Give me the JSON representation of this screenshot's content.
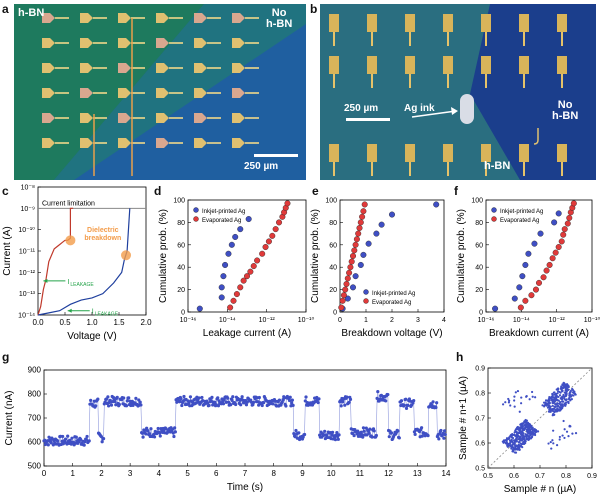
{
  "panels": {
    "a": {
      "letter": "a",
      "label_hbn": "h-BN",
      "label_no_hbn": [
        "No",
        "h-BN"
      ],
      "scale": "250 µm",
      "colors": {
        "hbn": "#1e7a5e",
        "bare": "#1f5fa0"
      }
    },
    "b": {
      "letter": "b",
      "scale": "250 µm",
      "ag_ink": "Ag ink",
      "label_no_hbn": [
        "No",
        "h-BN"
      ],
      "label_hbn": "h-BN",
      "colors": {
        "hbn": "#2a6e80",
        "bare": "#1b3e8c"
      }
    },
    "c": {
      "letter": "c",
      "current_limitation": "Current limitation",
      "dielectric_breakdown": [
        "Dielectric",
        "breakdown"
      ],
      "ileakage": "I",
      "ileakage_sub": "LEAKAGE",
      "colors": {
        "red": "#c0392b",
        "blue": "#1f3f9e",
        "green": "#25a34a",
        "orange": "#f39c4a"
      }
    },
    "d": {
      "letter": "d"
    },
    "e": {
      "letter": "e"
    },
    "f": {
      "letter": "f"
    },
    "g": {
      "letter": "g"
    },
    "h": {
      "letter": "h"
    }
  },
  "chart_data": [
    {
      "id": "c",
      "type": "line",
      "xlabel": "Voltage (V)",
      "ylabel": "Current (A)",
      "xlim": [
        0,
        2.0
      ],
      "ylim": [
        "1e-14",
        "1e-8"
      ],
      "xticks": [
        "0.0",
        "0.5",
        "1.0",
        "1.5",
        "2.0"
      ],
      "yticks": [
        "10⁻⁸",
        "10⁻⁹",
        "10⁻¹⁰",
        "10⁻¹¹",
        "10⁻¹²",
        "10⁻¹³",
        "10⁻¹⁴"
      ],
      "series": [
        {
          "name": "red",
          "x": [
            0.0,
            0.05,
            0.1,
            0.15,
            0.2,
            0.25,
            0.3,
            0.35,
            0.4,
            0.45,
            0.5,
            0.55,
            0.6,
            0.6,
            0.65
          ],
          "y": [
            -14,
            -13.6,
            -12.8,
            -12.3,
            -11.5,
            -11.2,
            -10.9,
            -10.8,
            -10.7,
            -10.6,
            -10.5,
            -10.5,
            -10.4,
            -9.0,
            -9.0
          ]
        },
        {
          "name": "blue",
          "x": [
            0.0,
            0.2,
            0.4,
            0.6,
            0.8,
            1.0,
            1.2,
            1.4,
            1.55,
            1.6,
            1.65,
            1.7
          ],
          "y": [
            -14,
            -13.9,
            -13.8,
            -13.5,
            -13.3,
            -13.2,
            -13.0,
            -12.5,
            -12.0,
            -11.4,
            -11.0,
            -9.0
          ]
        }
      ]
    },
    {
      "id": "d",
      "type": "scatter",
      "xlabel": "Leakage current (A)",
      "ylabel": "Cumulative prob. (%)",
      "ylim": [
        0,
        100
      ],
      "xlim_log": [
        -16,
        -9
      ],
      "xticks": [
        "10⁻¹⁶",
        "10⁻¹⁴",
        "10⁻¹²",
        "10⁻¹⁰"
      ],
      "yticks": [
        "0",
        "20",
        "40",
        "60",
        "80",
        "100"
      ],
      "legend": [
        "Inkjet-printed Ag",
        "Evaporated Ag"
      ],
      "series": [
        {
          "name": "Inkjet-printed Ag",
          "x": [
            -15.3,
            -14.0,
            -14.0,
            -13.9,
            -13.8,
            -13.6,
            -13.4,
            -13.2,
            -12.9,
            -12.4
          ],
          "y": [
            3,
            13,
            22,
            32,
            42,
            52,
            60,
            67,
            74,
            83
          ]
        },
        {
          "name": "Evaporated Ag",
          "x": [
            -13.5,
            -13.3,
            -13.1,
            -12.9,
            -12.7,
            -12.5,
            -12.3,
            -12.1,
            -11.9,
            -11.6,
            -11.4,
            -11.2,
            -11.0,
            -10.8,
            -10.6,
            -10.4,
            -10.3,
            -10.2,
            -10.1
          ],
          "y": [
            4,
            10,
            16,
            22,
            28,
            32,
            36,
            41,
            46,
            52,
            58,
            63,
            68,
            74,
            80,
            85,
            89,
            93,
            97
          ]
        }
      ]
    },
    {
      "id": "e",
      "type": "scatter",
      "xlabel": "Breakdown voltage (V)",
      "ylabel": "Cumulative prob. (%)",
      "xlim": [
        0,
        4
      ],
      "ylim": [
        0,
        100
      ],
      "xticks": [
        "0",
        "1",
        "2",
        "3",
        "4"
      ],
      "yticks": [
        "0",
        "20",
        "40",
        "60",
        "80",
        "100"
      ],
      "legend": [
        "Inkjet-printed Ag",
        "Evaporated Ag"
      ],
      "series": [
        {
          "name": "Inkjet-printed Ag",
          "x": [
            0.1,
            0.3,
            0.5,
            0.6,
            0.8,
            0.9,
            1.1,
            1.4,
            1.6,
            2.0,
            3.7
          ],
          "y": [
            3,
            12,
            22,
            32,
            42,
            51,
            61,
            70,
            78,
            87,
            96
          ]
        },
        {
          "name": "Evaporated Ag",
          "x": [
            0.05,
            0.1,
            0.15,
            0.2,
            0.25,
            0.3,
            0.35,
            0.4,
            0.45,
            0.5,
            0.55,
            0.6,
            0.65,
            0.7,
            0.75,
            0.8,
            0.85,
            0.9,
            0.95
          ],
          "y": [
            4,
            10,
            15,
            20,
            25,
            30,
            35,
            40,
            45,
            50,
            55,
            60,
            65,
            70,
            75,
            80,
            85,
            90,
            96
          ]
        }
      ]
    },
    {
      "id": "f",
      "type": "scatter",
      "xlabel": "Breakdown current (A)",
      "ylabel": "Cumulative prob. (%)",
      "ylim": [
        0,
        100
      ],
      "xlim_log": [
        -16,
        -9
      ],
      "xticks": [
        "10⁻¹⁶",
        "10⁻¹⁴",
        "10⁻¹²",
        "10⁻¹⁰"
      ],
      "yticks": [
        "0",
        "20",
        "40",
        "60",
        "80",
        "100"
      ],
      "legend": [
        "Inkjet-printed Ag",
        "Evaporated Ag"
      ],
      "series": [
        {
          "name": "Inkjet-printed Ag",
          "x": [
            -15.4,
            -14.1,
            -13.8,
            -13.6,
            -13.4,
            -13.2,
            -12.8,
            -12.4,
            -11.5,
            -11.2
          ],
          "y": [
            3,
            12,
            22,
            32,
            42,
            52,
            61,
            70,
            80,
            88
          ]
        },
        {
          "name": "Evaporated Ag",
          "x": [
            -13.7,
            -13.4,
            -13.0,
            -12.7,
            -12.5,
            -12.2,
            -12.0,
            -11.8,
            -11.6,
            -11.4,
            -11.2,
            -11.0,
            -10.9,
            -10.8,
            -10.6,
            -10.5,
            -10.4,
            -10.3,
            -10.2
          ],
          "y": [
            4,
            10,
            15,
            20,
            26,
            31,
            37,
            42,
            48,
            53,
            58,
            63,
            69,
            74,
            79,
            84,
            89,
            93,
            97
          ]
        }
      ]
    },
    {
      "id": "g",
      "type": "scatter",
      "xlabel": "Time (s)",
      "ylabel": "Current (nA)",
      "xlim": [
        0,
        14
      ],
      "ylim": [
        500,
        900
      ],
      "xticks": [
        "0",
        "1",
        "2",
        "3",
        "4",
        "5",
        "6",
        "7",
        "8",
        "9",
        "10",
        "11",
        "12",
        "13",
        "14"
      ],
      "yticks": [
        "500",
        "600",
        "700",
        "800",
        "900"
      ],
      "levels": [
        {
          "t0": 0.0,
          "t1": 1.6,
          "level": 605
        },
        {
          "t0": 1.6,
          "t1": 1.9,
          "level": 760
        },
        {
          "t0": 1.9,
          "t1": 2.1,
          "level": 620
        },
        {
          "t0": 2.1,
          "t1": 3.4,
          "level": 770
        },
        {
          "t0": 3.4,
          "t1": 4.6,
          "level": 640
        },
        {
          "t0": 4.6,
          "t1": 8.7,
          "level": 770
        },
        {
          "t0": 8.7,
          "t1": 9.1,
          "level": 630
        },
        {
          "t0": 9.1,
          "t1": 9.6,
          "level": 770
        },
        {
          "t0": 9.6,
          "t1": 10.3,
          "level": 630
        },
        {
          "t0": 10.3,
          "t1": 10.7,
          "level": 770
        },
        {
          "t0": 10.7,
          "t1": 11.6,
          "level": 640
        },
        {
          "t0": 11.6,
          "t1": 12.0,
          "level": 790
        },
        {
          "t0": 12.0,
          "t1": 12.4,
          "level": 630
        },
        {
          "t0": 12.4,
          "t1": 12.9,
          "level": 760
        },
        {
          "t0": 12.9,
          "t1": 13.4,
          "level": 640
        },
        {
          "t0": 13.4,
          "t1": 13.7,
          "level": 760
        },
        {
          "t0": 13.7,
          "t1": 14.0,
          "level": 630
        }
      ]
    },
    {
      "id": "h",
      "type": "scatter",
      "xlabel": "Sample # n (µA)",
      "ylabel": "Sample # n+1 (µA)",
      "xlim": [
        0.5,
        0.9
      ],
      "ylim": [
        0.5,
        0.9
      ],
      "xticks": [
        "0.5",
        "0.6",
        "0.7",
        "0.8",
        "0.9"
      ],
      "yticks": [
        "0.5",
        "0.6",
        "0.7",
        "0.8",
        "0.9"
      ],
      "clusters": [
        {
          "cx": 0.625,
          "cy": 0.625,
          "count": 300
        },
        {
          "cx": 0.775,
          "cy": 0.775,
          "count": 250
        },
        {
          "cx": 0.625,
          "cy": 0.775,
          "count": 20
        },
        {
          "cx": 0.775,
          "cy": 0.625,
          "count": 20
        }
      ]
    }
  ]
}
